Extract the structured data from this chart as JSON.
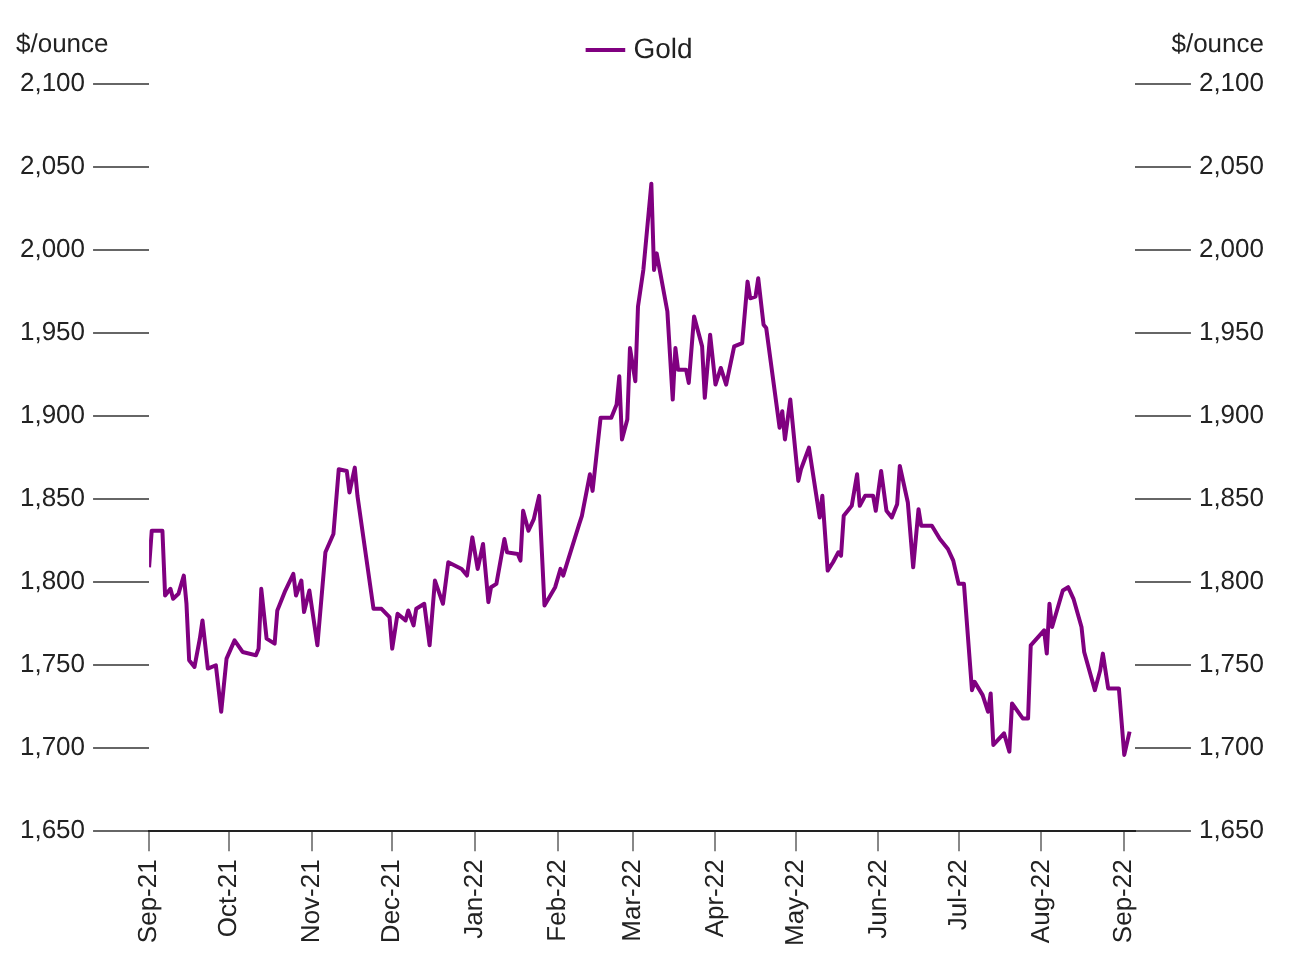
{
  "chart_data": {
    "type": "line",
    "ylabel": "$/ounce",
    "y2label": "$/ounce",
    "legend": "top",
    "x": [
      "2021-09-01",
      "2021-09-02",
      "2021-09-06",
      "2021-09-07",
      "2021-09-09",
      "2021-09-10",
      "2021-09-12",
      "2021-09-14",
      "2021-09-15",
      "2021-09-16",
      "2021-09-18",
      "2021-09-20",
      "2021-09-21",
      "2021-09-23",
      "2021-09-26",
      "2021-09-28",
      "2021-09-30",
      "2021-10-03",
      "2021-10-06",
      "2021-10-11",
      "2021-10-12",
      "2021-10-13",
      "2021-10-15",
      "2021-10-18",
      "2021-10-19",
      "2021-10-22",
      "2021-10-25",
      "2021-10-26",
      "2021-10-28",
      "2021-10-29",
      "2021-10-31",
      "2021-11-03",
      "2021-11-06",
      "2021-11-09",
      "2021-11-11",
      "2021-11-14",
      "2021-11-15",
      "2021-11-17",
      "2021-11-18",
      "2021-11-24",
      "2021-11-27",
      "2021-11-30",
      "2021-12-01",
      "2021-12-03",
      "2021-12-06",
      "2021-12-07",
      "2021-12-09",
      "2021-12-10",
      "2021-12-13",
      "2021-12-15",
      "2021-12-17",
      "2021-12-20",
      "2021-12-22",
      "2021-12-27",
      "2021-12-29",
      "2021-12-31",
      "2022-01-02",
      "2022-01-04",
      "2022-01-06",
      "2022-01-07",
      "2022-01-09",
      "2022-01-12",
      "2022-01-13",
      "2022-01-17",
      "2022-01-18",
      "2022-01-19",
      "2022-01-21",
      "2022-01-23",
      "2022-01-25",
      "2022-01-27",
      "2022-01-31",
      "2022-02-02",
      "2022-02-03",
      "2022-02-09",
      "2022-02-10",
      "2022-02-13",
      "2022-02-14",
      "2022-02-17",
      "2022-02-21",
      "2022-02-23",
      "2022-02-24",
      "2022-02-25",
      "2022-02-27",
      "2022-02-28",
      "2022-03-02",
      "2022-03-03",
      "2022-03-05",
      "2022-03-08",
      "2022-03-09",
      "2022-03-10",
      "2022-03-14",
      "2022-03-16",
      "2022-03-17",
      "2022-03-18",
      "2022-03-21",
      "2022-03-22",
      "2022-03-24",
      "2022-03-27",
      "2022-03-28",
      "2022-03-30",
      "2022-04-01",
      "2022-04-03",
      "2022-04-05",
      "2022-04-08",
      "2022-04-11",
      "2022-04-13",
      "2022-04-14",
      "2022-04-16",
      "2022-04-17",
      "2022-04-19",
      "2022-04-20",
      "2022-04-25",
      "2022-04-26",
      "2022-04-27",
      "2022-04-29",
      "2022-05-02",
      "2022-05-03",
      "2022-05-06",
      "2022-05-10",
      "2022-05-11",
      "2022-05-13",
      "2022-05-15",
      "2022-05-17",
      "2022-05-18",
      "2022-05-19",
      "2022-05-22",
      "2022-05-24",
      "2022-05-25",
      "2022-05-27",
      "2022-05-30",
      "2022-05-31",
      "2022-06-02",
      "2022-06-04",
      "2022-06-06",
      "2022-06-08",
      "2022-06-09",
      "2022-06-12",
      "2022-06-14",
      "2022-06-16",
      "2022-06-17",
      "2022-06-21",
      "2022-06-24",
      "2022-06-27",
      "2022-06-29",
      "2022-07-01",
      "2022-07-03",
      "2022-07-06",
      "2022-07-07",
      "2022-07-10",
      "2022-07-12",
      "2022-07-13",
      "2022-07-14",
      "2022-07-18",
      "2022-07-20",
      "2022-07-21",
      "2022-07-25",
      "2022-07-27",
      "2022-07-28",
      "2022-08-02",
      "2022-08-03",
      "2022-08-04",
      "2022-08-05",
      "2022-08-09",
      "2022-08-11",
      "2022-08-13",
      "2022-08-16",
      "2022-08-17",
      "2022-08-21",
      "2022-08-23",
      "2022-08-24",
      "2022-08-26",
      "2022-08-30",
      "2022-09-01",
      "2022-09-03"
    ],
    "series": [
      {
        "name": "Gold",
        "color": "#800080",
        "values": [
          1809,
          1831,
          1831,
          1792,
          1796,
          1790,
          1793,
          1804,
          1787,
          1753,
          1749,
          1766,
          1777,
          1748,
          1750,
          1722,
          1754,
          1765,
          1758,
          1756,
          1760,
          1796,
          1766,
          1763,
          1783,
          1795,
          1805,
          1792,
          1801,
          1782,
          1795,
          1762,
          1818,
          1829,
          1868,
          1867,
          1854,
          1869,
          1852,
          1784,
          1784,
          1779,
          1760,
          1781,
          1777,
          1783,
          1774,
          1784,
          1787,
          1762,
          1801,
          1787,
          1812,
          1808,
          1804,
          1827,
          1808,
          1823,
          1788,
          1797,
          1799,
          1826,
          1818,
          1817,
          1813,
          1843,
          1831,
          1838,
          1852,
          1786,
          1797,
          1808,
          1804,
          1835,
          1840,
          1865,
          1855,
          1899,
          1899,
          1907,
          1924,
          1886,
          1898,
          1941,
          1921,
          1966,
          1988,
          2040,
          1988,
          1998,
          1963,
          1910,
          1941,
          1928,
          1928,
          1920,
          1960,
          1942,
          1911,
          1949,
          1919,
          1929,
          1919,
          1942,
          1944,
          1981,
          1971,
          1972,
          1983,
          1955,
          1953,
          1893,
          1903,
          1886,
          1910,
          1861,
          1868,
          1881,
          1839,
          1852,
          1807,
          1812,
          1818,
          1816,
          1840,
          1846,
          1865,
          1846,
          1852,
          1852,
          1843,
          1867,
          1843,
          1839,
          1847,
          1870,
          1848,
          1809,
          1844,
          1834,
          1834,
          1826,
          1820,
          1813,
          1799,
          1799,
          1735,
          1740,
          1732,
          1722,
          1733,
          1702,
          1709,
          1698,
          1727,
          1718,
          1718,
          1762,
          1771,
          1757,
          1787,
          1773,
          1795,
          1797,
          1790,
          1773,
          1758,
          1735,
          1747,
          1757,
          1736,
          1736,
          1696,
          1710
        ]
      }
    ],
    "xlim": [
      "2021-09-01",
      "2022-09-05"
    ],
    "xticks": [
      {
        "value": "2021-09-01",
        "label": "Sep-21"
      },
      {
        "value": "2021-10-01",
        "label": "Oct-21"
      },
      {
        "value": "2021-11-01",
        "label": "Nov-21"
      },
      {
        "value": "2021-12-01",
        "label": "Dec-21"
      },
      {
        "value": "2022-01-01",
        "label": "Jan-22"
      },
      {
        "value": "2022-02-01",
        "label": "Feb-22"
      },
      {
        "value": "2022-03-01",
        "label": "Mar-22"
      },
      {
        "value": "2022-04-01",
        "label": "Apr-22"
      },
      {
        "value": "2022-05-01",
        "label": "May-22"
      },
      {
        "value": "2022-06-01",
        "label": "Jun-22"
      },
      {
        "value": "2022-07-01",
        "label": "Jul-22"
      },
      {
        "value": "2022-08-01",
        "label": "Aug-22"
      },
      {
        "value": "2022-09-01",
        "label": "Sep-22"
      }
    ],
    "ylim": [
      1650,
      2100
    ],
    "yticks": [
      {
        "value": 1650,
        "label": "1,650"
      },
      {
        "value": 1700,
        "label": "1,700"
      },
      {
        "value": 1750,
        "label": "1,750"
      },
      {
        "value": 1800,
        "label": "1,800"
      },
      {
        "value": 1850,
        "label": "1,850"
      },
      {
        "value": 1900,
        "label": "1,900"
      },
      {
        "value": 1950,
        "label": "1,950"
      },
      {
        "value": 2000,
        "label": "2,000"
      },
      {
        "value": 2050,
        "label": "2,050"
      },
      {
        "value": 2100,
        "label": "2,100"
      }
    ],
    "y2lim": [
      1650,
      2100
    ],
    "y2ticks": [
      {
        "value": 1650,
        "label": "1,650"
      },
      {
        "value": 1700,
        "label": "1,700"
      },
      {
        "value": 1750,
        "label": "1,750"
      },
      {
        "value": 1800,
        "label": "1,800"
      },
      {
        "value": 1850,
        "label": "1,850"
      },
      {
        "value": 1900,
        "label": "1,900"
      },
      {
        "value": 1950,
        "label": "1,950"
      },
      {
        "value": 2000,
        "label": "2,000"
      },
      {
        "value": 2050,
        "label": "2,050"
      },
      {
        "value": 2100,
        "label": "2,100"
      }
    ],
    "grid": false,
    "marker": "none",
    "line_style": "solid"
  }
}
